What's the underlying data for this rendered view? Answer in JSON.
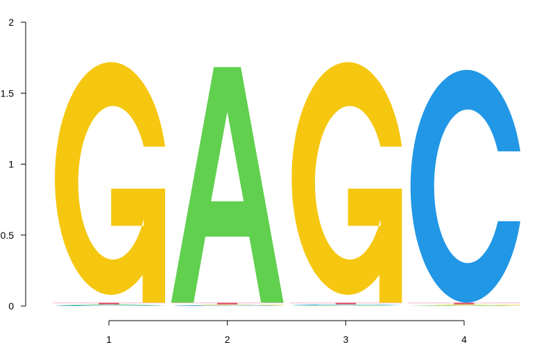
{
  "chart_data": {
    "type": "sequence-logo",
    "title": "",
    "xlabel": "",
    "ylabel": "",
    "ylim": [
      0,
      2
    ],
    "yticks": [
      0,
      0.5,
      1,
      1.5,
      2
    ],
    "ytick_labels": [
      "0",
      "0.5",
      "1",
      "1.5",
      "2"
    ],
    "positions": [
      1,
      2,
      3,
      4
    ],
    "position_labels": [
      "1",
      "2",
      "3",
      "4"
    ],
    "grid": false,
    "colors": {
      "A": "#61d04f",
      "C": "#2297e6",
      "G": "#f5c710",
      "T": "#df536b"
    },
    "columns": [
      {
        "position": 1,
        "letters": [
          {
            "base": "C",
            "height": 0.006
          },
          {
            "base": "A",
            "height": 0.006
          },
          {
            "base": "T",
            "height": 0.012
          },
          {
            "base": "G",
            "height": 1.64
          }
        ]
      },
      {
        "position": 2,
        "letters": [
          {
            "base": "C",
            "height": 0.006
          },
          {
            "base": "G",
            "height": 0.006
          },
          {
            "base": "T",
            "height": 0.012
          },
          {
            "base": "A",
            "height": 1.66
          }
        ]
      },
      {
        "position": 3,
        "letters": [
          {
            "base": "A",
            "height": 0.006
          },
          {
            "base": "C",
            "height": 0.006
          },
          {
            "base": "T",
            "height": 0.012
          },
          {
            "base": "G",
            "height": 1.64
          }
        ]
      },
      {
        "position": 4,
        "letters": [
          {
            "base": "A",
            "height": 0.006
          },
          {
            "base": "G",
            "height": 0.006
          },
          {
            "base": "T",
            "height": 0.012
          },
          {
            "base": "C",
            "height": 1.64
          }
        ]
      }
    ]
  }
}
